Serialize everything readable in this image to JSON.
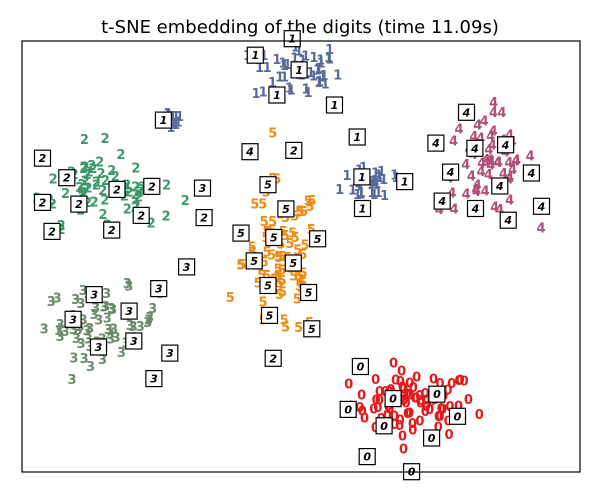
{
  "chart_data": {
    "type": "scatter",
    "title": "t-SNE embedding of the digits (time 11.09s)",
    "xlabel": "",
    "ylabel": "",
    "xlim": [
      0,
      1
    ],
    "ylim": [
      0,
      1
    ],
    "grid": false,
    "colors": {
      "0": "#e31a1c",
      "1": "#5a6a9a",
      "2": "#3c9a6a",
      "3": "#6a8a6a",
      "4": "#b0507a",
      "5": "#f08a10"
    },
    "clusters": [
      {
        "label": "0",
        "cx": 0.72,
        "cy": 0.14,
        "sx": 0.13,
        "sy": 0.085,
        "n": 85
      },
      {
        "label": "1",
        "cx": 0.5,
        "cy": 0.91,
        "sx": 0.09,
        "sy": 0.075,
        "n": 45
      },
      {
        "label": "1",
        "cx": 0.26,
        "cy": 0.8,
        "sx": 0.03,
        "sy": 0.025,
        "n": 10
      },
      {
        "label": "1",
        "cx": 0.65,
        "cy": 0.66,
        "sx": 0.07,
        "sy": 0.06,
        "n": 25
      },
      {
        "label": "2",
        "cx": 0.1,
        "cy": 0.65,
        "sx": 0.1,
        "sy": 0.1,
        "n": 55
      },
      {
        "label": "2",
        "cx": 0.2,
        "cy": 0.62,
        "sx": 0.07,
        "sy": 0.06,
        "n": 12
      },
      {
        "label": "3",
        "cx": 0.13,
        "cy": 0.33,
        "sx": 0.12,
        "sy": 0.085,
        "n": 65
      },
      {
        "label": "4",
        "cx": 0.86,
        "cy": 0.7,
        "sx": 0.1,
        "sy": 0.13,
        "n": 60
      },
      {
        "label": "5",
        "cx": 0.47,
        "cy": 0.47,
        "sx": 0.08,
        "sy": 0.2,
        "n": 75
      }
    ],
    "thumbnails": [
      {
        "label": "1",
        "x": 0.491,
        "y": 0.996
      },
      {
        "label": "1",
        "x": 0.421,
        "y": 0.958
      },
      {
        "label": "1",
        "x": 0.504,
        "y": 0.924
      },
      {
        "label": "1",
        "x": 0.462,
        "y": 0.866
      },
      {
        "label": "1",
        "x": 0.571,
        "y": 0.843
      },
      {
        "label": "1",
        "x": 0.247,
        "y": 0.808
      },
      {
        "label": "1",
        "x": 0.614,
        "y": 0.769
      },
      {
        "label": "1",
        "x": 0.623,
        "y": 0.677
      },
      {
        "label": "1",
        "x": 0.704,
        "y": 0.666
      },
      {
        "label": "1",
        "x": 0.624,
        "y": 0.604
      },
      {
        "label": "2",
        "x": 0.018,
        "y": 0.72
      },
      {
        "label": "2",
        "x": 0.064,
        "y": 0.675
      },
      {
        "label": "2",
        "x": 0.018,
        "y": 0.618
      },
      {
        "label": "2",
        "x": 0.087,
        "y": 0.614
      },
      {
        "label": "2",
        "x": 0.036,
        "y": 0.551
      },
      {
        "label": "2",
        "x": 0.159,
        "y": 0.648
      },
      {
        "label": "2",
        "x": 0.225,
        "y": 0.655
      },
      {
        "label": "2",
        "x": 0.205,
        "y": 0.588
      },
      {
        "label": "2",
        "x": 0.149,
        "y": 0.554
      },
      {
        "label": "2",
        "x": 0.494,
        "y": 0.738
      },
      {
        "label": "2",
        "x": 0.324,
        "y": 0.583
      },
      {
        "label": "2",
        "x": 0.455,
        "y": 0.258
      },
      {
        "label": "3",
        "x": 0.321,
        "y": 0.651
      },
      {
        "label": "3",
        "x": 0.291,
        "y": 0.469
      },
      {
        "label": "3",
        "x": 0.238,
        "y": 0.419
      },
      {
        "label": "3",
        "x": 0.116,
        "y": 0.405
      },
      {
        "label": "3",
        "x": 0.076,
        "y": 0.348
      },
      {
        "label": "3",
        "x": 0.182,
        "y": 0.367
      },
      {
        "label": "3",
        "x": 0.191,
        "y": 0.298
      },
      {
        "label": "3",
        "x": 0.124,
        "y": 0.284
      },
      {
        "label": "3",
        "x": 0.259,
        "y": 0.27
      },
      {
        "label": "3",
        "x": 0.229,
        "y": 0.211
      },
      {
        "label": "4",
        "x": 0.411,
        "y": 0.735
      },
      {
        "label": "4",
        "x": 0.821,
        "y": 0.826
      },
      {
        "label": "4",
        "x": 0.763,
        "y": 0.755
      },
      {
        "label": "4",
        "x": 0.837,
        "y": 0.743
      },
      {
        "label": "4",
        "x": 0.895,
        "y": 0.751
      },
      {
        "label": "4",
        "x": 0.791,
        "y": 0.688
      },
      {
        "label": "4",
        "x": 0.884,
        "y": 0.656
      },
      {
        "label": "4",
        "x": 0.944,
        "y": 0.686
      },
      {
        "label": "4",
        "x": 0.775,
        "y": 0.621
      },
      {
        "label": "4",
        "x": 0.838,
        "y": 0.604
      },
      {
        "label": "4",
        "x": 0.9,
        "y": 0.577
      },
      {
        "label": "4",
        "x": 0.963,
        "y": 0.609
      },
      {
        "label": "5",
        "x": 0.445,
        "y": 0.659
      },
      {
        "label": "5",
        "x": 0.479,
        "y": 0.603
      },
      {
        "label": "5",
        "x": 0.394,
        "y": 0.547
      },
      {
        "label": "5",
        "x": 0.456,
        "y": 0.537
      },
      {
        "label": "5",
        "x": 0.539,
        "y": 0.534
      },
      {
        "label": "5",
        "x": 0.419,
        "y": 0.483
      },
      {
        "label": "5",
        "x": 0.493,
        "y": 0.478
      },
      {
        "label": "5",
        "x": 0.445,
        "y": 0.426
      },
      {
        "label": "5",
        "x": 0.522,
        "y": 0.41
      },
      {
        "label": "5",
        "x": 0.448,
        "y": 0.357
      },
      {
        "label": "5",
        "x": 0.528,
        "y": 0.326
      },
      {
        "label": "0",
        "x": 0.62,
        "y": 0.239
      },
      {
        "label": "0",
        "x": 0.682,
        "y": 0.165
      },
      {
        "label": "0",
        "x": 0.765,
        "y": 0.175
      },
      {
        "label": "0",
        "x": 0.597,
        "y": 0.14
      },
      {
        "label": "0",
        "x": 0.804,
        "y": 0.124
      },
      {
        "label": "0",
        "x": 0.665,
        "y": 0.102
      },
      {
        "label": "0",
        "x": 0.755,
        "y": 0.074
      },
      {
        "label": "0",
        "x": 0.633,
        "y": 0.031
      },
      {
        "label": "0",
        "x": 0.717,
        "y": -0.004
      }
    ]
  }
}
